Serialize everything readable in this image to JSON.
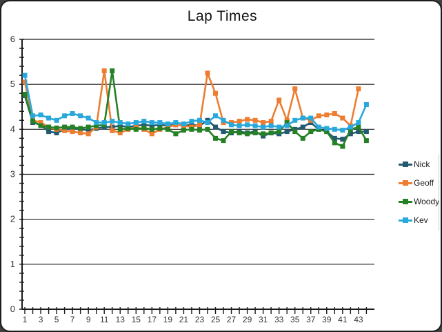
{
  "window": {
    "frame_background": "#3f3f3f",
    "card_background": "#ffffff",
    "border_color": "#1c1c1c"
  },
  "chart_data": {
    "type": "line",
    "title": "Lap Times",
    "xlabel": "",
    "ylabel": "",
    "ylim": [
      0,
      6
    ],
    "y_ticks": [
      0,
      1,
      2,
      3,
      4,
      5,
      6
    ],
    "y_minor_tick_step": 0.2,
    "x_range": [
      1,
      44
    ],
    "x_labeled_ticks": [
      1,
      3,
      5,
      7,
      9,
      11,
      13,
      15,
      17,
      19,
      21,
      23,
      25,
      27,
      29,
      31,
      33,
      35,
      37,
      39,
      41,
      43
    ],
    "grid": "horizontal",
    "grid_color": "#1a1a1a",
    "axis_color": "#1a1a1a",
    "tick_label_color": "#333333",
    "legend_position": "right",
    "marker": "square",
    "series": [
      {
        "name": "Nick",
        "color": "#235a70",
        "values": [
          4.75,
          4.15,
          4.1,
          3.95,
          3.92,
          4.0,
          4.02,
          4.0,
          3.98,
          4.02,
          4.05,
          4.05,
          4.08,
          4.05,
          4.08,
          4.1,
          4.08,
          4.1,
          4.08,
          4.1,
          4.08,
          4.1,
          4.08,
          4.2,
          4.05,
          3.95,
          3.92,
          3.95,
          3.92,
          3.95,
          3.85,
          3.92,
          3.9,
          3.95,
          4.0,
          4.05,
          4.15,
          4.0,
          3.95,
          3.8,
          3.78,
          3.9,
          3.95,
          3.95
        ]
      },
      {
        "name": "Geoff",
        "color": "#ed7d31",
        "values": [
          5.05,
          4.2,
          4.15,
          4.05,
          4.0,
          3.97,
          3.95,
          3.92,
          3.9,
          4.05,
          5.3,
          3.97,
          3.92,
          4.0,
          4.05,
          4.0,
          3.9,
          4.0,
          4.05,
          4.1,
          4.08,
          4.05,
          4.1,
          5.25,
          4.8,
          4.15,
          4.15,
          4.18,
          4.22,
          4.2,
          4.15,
          4.18,
          4.65,
          4.2,
          4.9,
          4.25,
          4.2,
          4.3,
          4.32,
          4.35,
          4.25,
          4.08,
          4.9,
          null
        ]
      },
      {
        "name": "Woody",
        "color": "#258125",
        "values": [
          4.78,
          4.18,
          4.08,
          4.05,
          4.03,
          4.05,
          4.05,
          4.02,
          4.05,
          4.08,
          4.1,
          5.3,
          4.0,
          4.02,
          4.0,
          4.03,
          4.0,
          4.02,
          4.0,
          3.9,
          3.98,
          4.0,
          3.98,
          4.0,
          3.8,
          3.75,
          3.95,
          3.92,
          3.9,
          3.92,
          3.9,
          3.92,
          3.95,
          4.15,
          3.95,
          3.8,
          3.95,
          4.0,
          3.95,
          3.7,
          3.62,
          4.0,
          4.05,
          3.75
        ]
      },
      {
        "name": "Kev",
        "color": "#29a8dc",
        "values": [
          5.2,
          4.3,
          4.32,
          4.25,
          4.2,
          4.3,
          4.35,
          4.3,
          4.25,
          4.15,
          4.15,
          4.18,
          4.15,
          4.12,
          4.15,
          4.18,
          4.15,
          4.15,
          4.12,
          4.15,
          4.12,
          4.18,
          4.2,
          4.15,
          4.3,
          4.2,
          4.1,
          4.08,
          4.1,
          4.08,
          4.05,
          4.08,
          4.05,
          4.08,
          4.2,
          4.25,
          4.25,
          4.05,
          4.02,
          4.0,
          3.98,
          4.05,
          4.15,
          4.55
        ]
      }
    ]
  },
  "legend": {
    "items": [
      {
        "label": "Nick"
      },
      {
        "label": "Geoff"
      },
      {
        "label": "Woody"
      },
      {
        "label": "Kev"
      }
    ]
  }
}
